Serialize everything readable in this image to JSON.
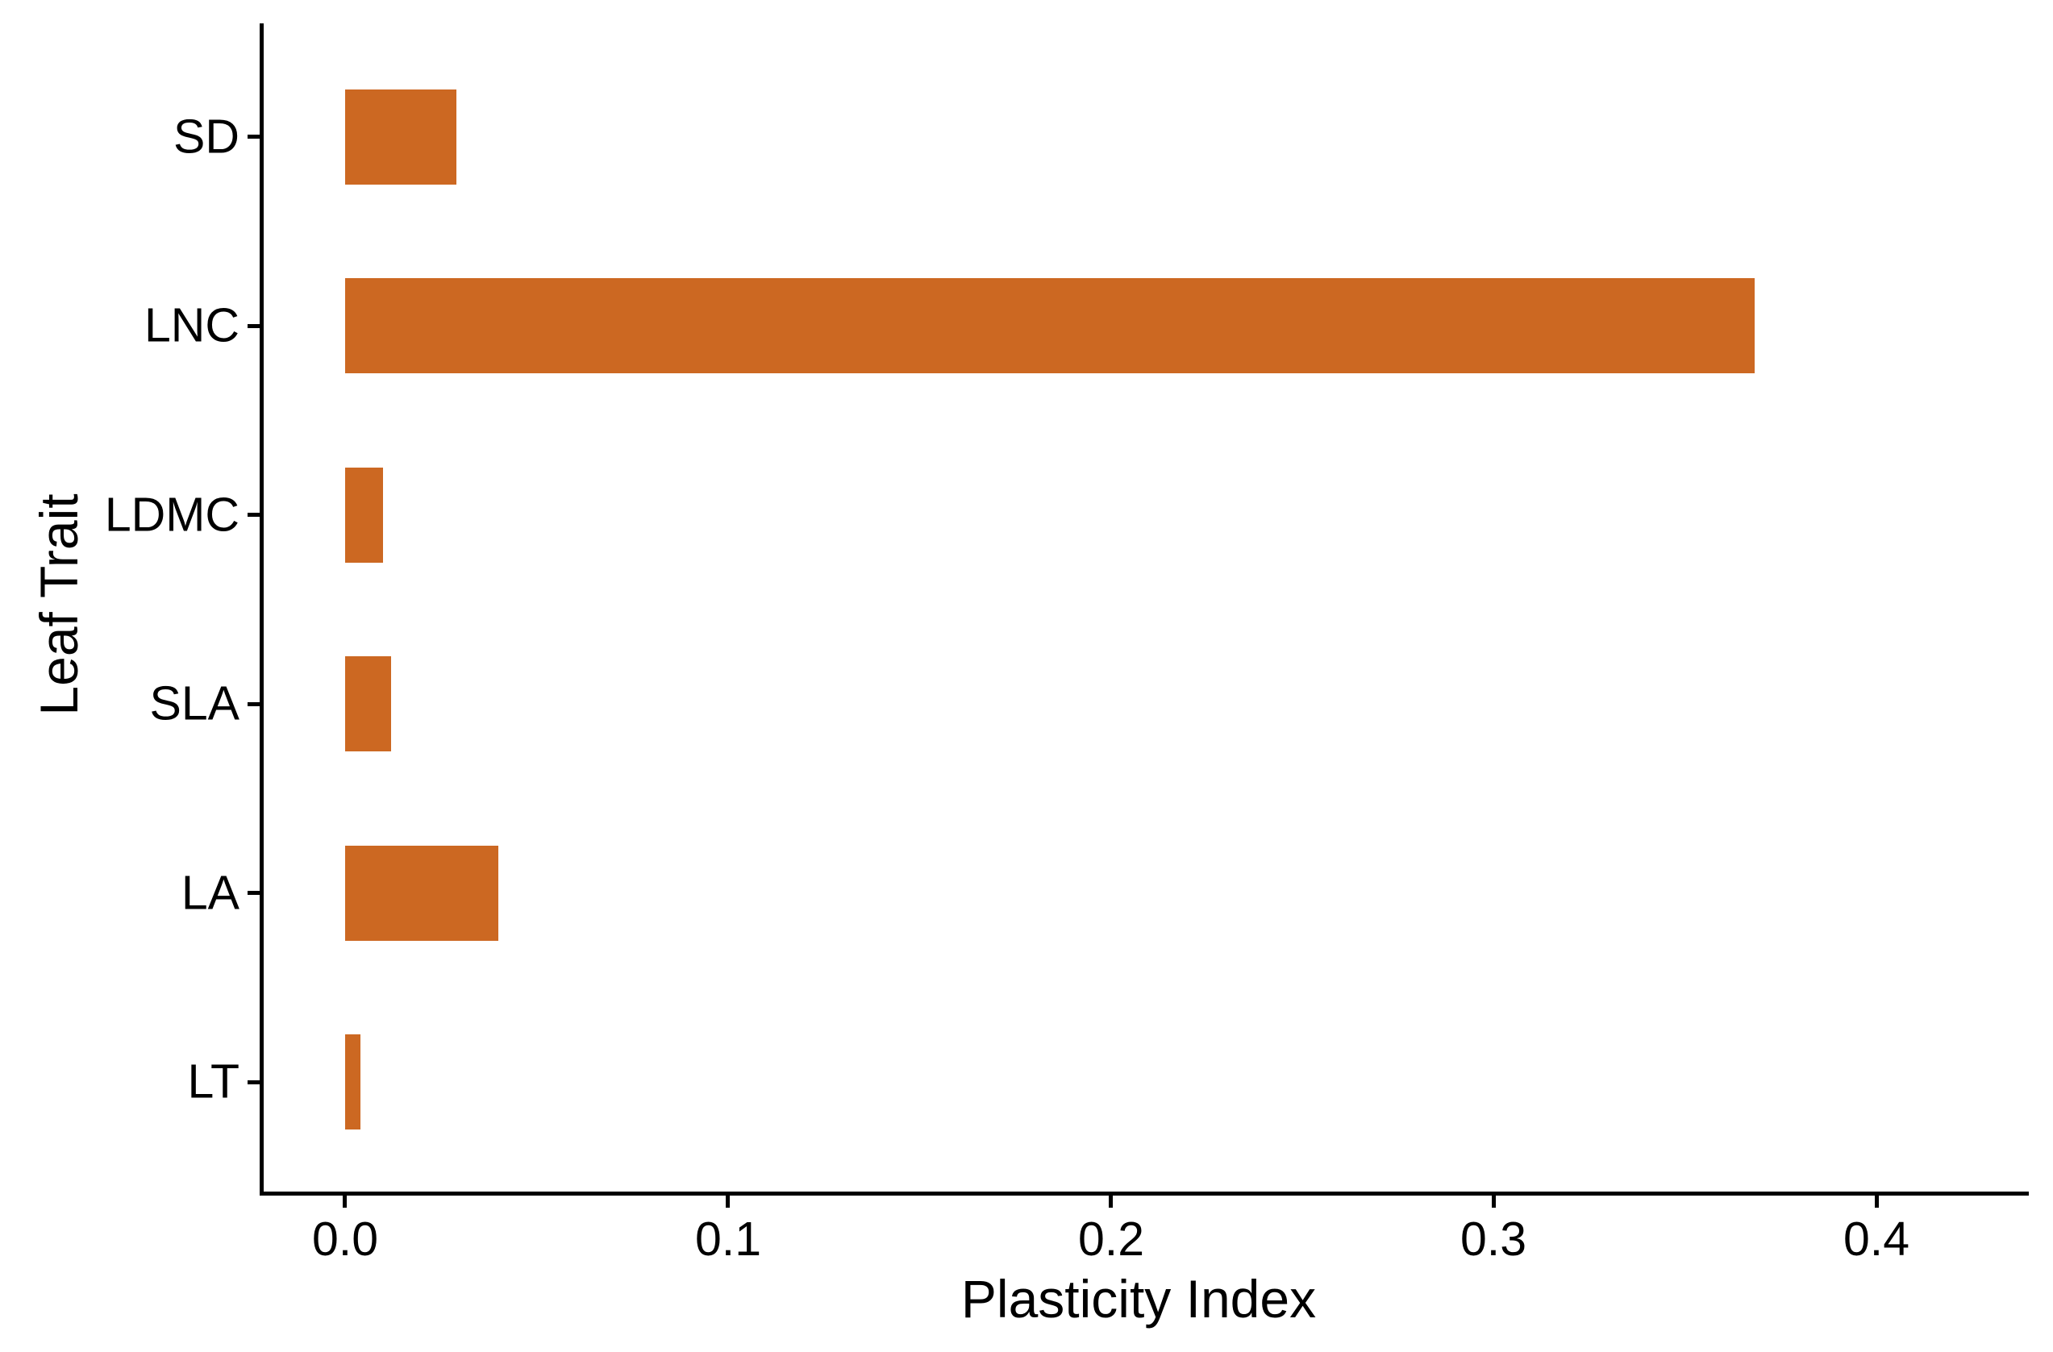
{
  "chart_data": {
    "type": "bar",
    "orientation": "horizontal",
    "title": "",
    "xlabel": "Plasticity Index",
    "ylabel": "Leaf Trait",
    "categories": [
      "SD",
      "LNC",
      "LDMC",
      "SLA",
      "LA",
      "LT"
    ],
    "values": [
      0.029,
      0.368,
      0.01,
      0.012,
      0.04,
      0.004
    ],
    "x_ticks": [
      {
        "value": 0.0,
        "label": "0.0"
      },
      {
        "value": 0.1,
        "label": "0.1"
      },
      {
        "value": 0.2,
        "label": "0.2"
      },
      {
        "value": 0.3,
        "label": "0.3"
      },
      {
        "value": 0.4,
        "label": "0.4"
      }
    ],
    "xlim": [
      -0.0216,
      0.4397
    ],
    "grid": false,
    "legend": false,
    "bar_color": "#CC6822",
    "axis_color": "#000000",
    "text_color": "#000000",
    "background_color": "#FFFFFF"
  }
}
